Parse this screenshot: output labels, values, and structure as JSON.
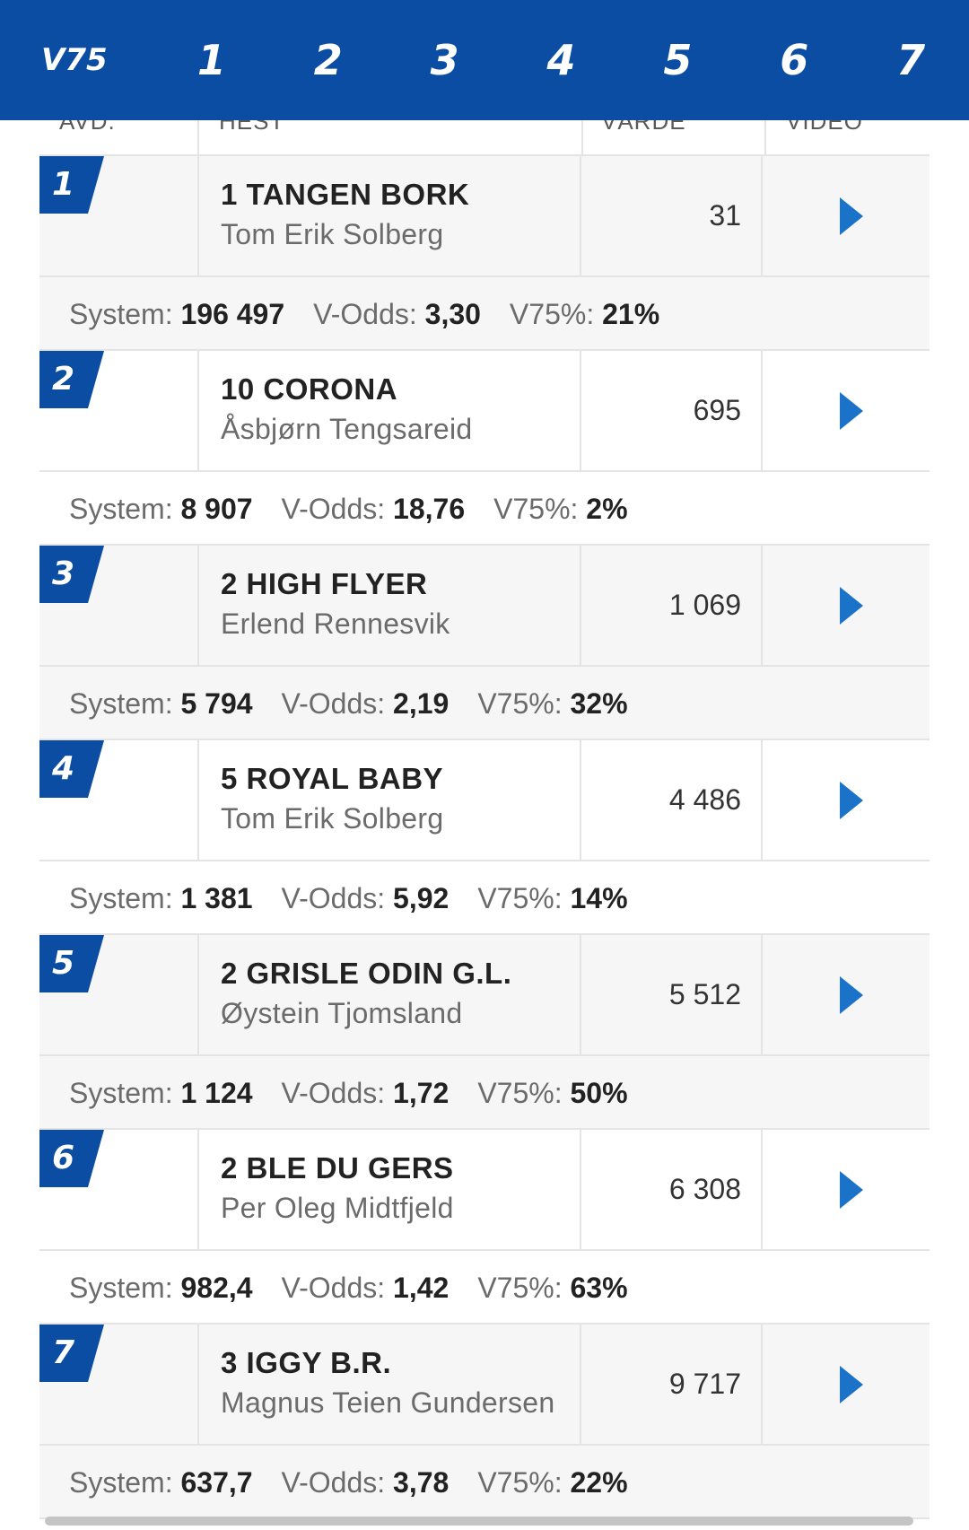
{
  "tabs": [
    "V75",
    "1",
    "2",
    "3",
    "4",
    "5",
    "6",
    "7"
  ],
  "columns": {
    "avd": "AVD.",
    "hest": "HEST",
    "varde": "VÄRDE",
    "video": "VIDEO"
  },
  "labels": {
    "system": "System:",
    "vodds": "V-Odds:",
    "v75pct": "V75%:"
  },
  "races": [
    {
      "avd": "1",
      "horse": "1 TANGEN BORK",
      "driver": "Tom Erik Solberg",
      "value": "31",
      "system": "196 497",
      "vodds": "3,30",
      "v75pct": "21%"
    },
    {
      "avd": "2",
      "horse": "10 CORONA",
      "driver": "Åsbjørn Tengsareid",
      "value": "695",
      "system": "8 907",
      "vodds": "18,76",
      "v75pct": "2%"
    },
    {
      "avd": "3",
      "horse": "2 HIGH FLYER",
      "driver": "Erlend Rennesvik",
      "value": "1 069",
      "system": "5 794",
      "vodds": "2,19",
      "v75pct": "32%"
    },
    {
      "avd": "4",
      "horse": "5 ROYAL BABY",
      "driver": "Tom Erik Solberg",
      "value": "4 486",
      "system": "1 381",
      "vodds": "5,92",
      "v75pct": "14%"
    },
    {
      "avd": "5",
      "horse": "2 GRISLE ODIN G.L.",
      "driver": "Øystein Tjomsland",
      "value": "5 512",
      "system": "1 124",
      "vodds": "1,72",
      "v75pct": "50%"
    },
    {
      "avd": "6",
      "horse": "2 BLE DU GERS",
      "driver": "Per Oleg Midtfjeld",
      "value": "6 308",
      "system": "982,4",
      "vodds": "1,42",
      "v75pct": "63%"
    },
    {
      "avd": "7",
      "horse": "3 IGGY B.R.",
      "driver": "Magnus Teien Gundersen",
      "value": "9 717",
      "system": "637,7",
      "vodds": "3,78",
      "v75pct": "22%"
    }
  ],
  "colors": {
    "brand_blue": "#0a4da2",
    "play_blue": "#1a73c8"
  },
  "icons": {
    "video": "play-icon"
  }
}
